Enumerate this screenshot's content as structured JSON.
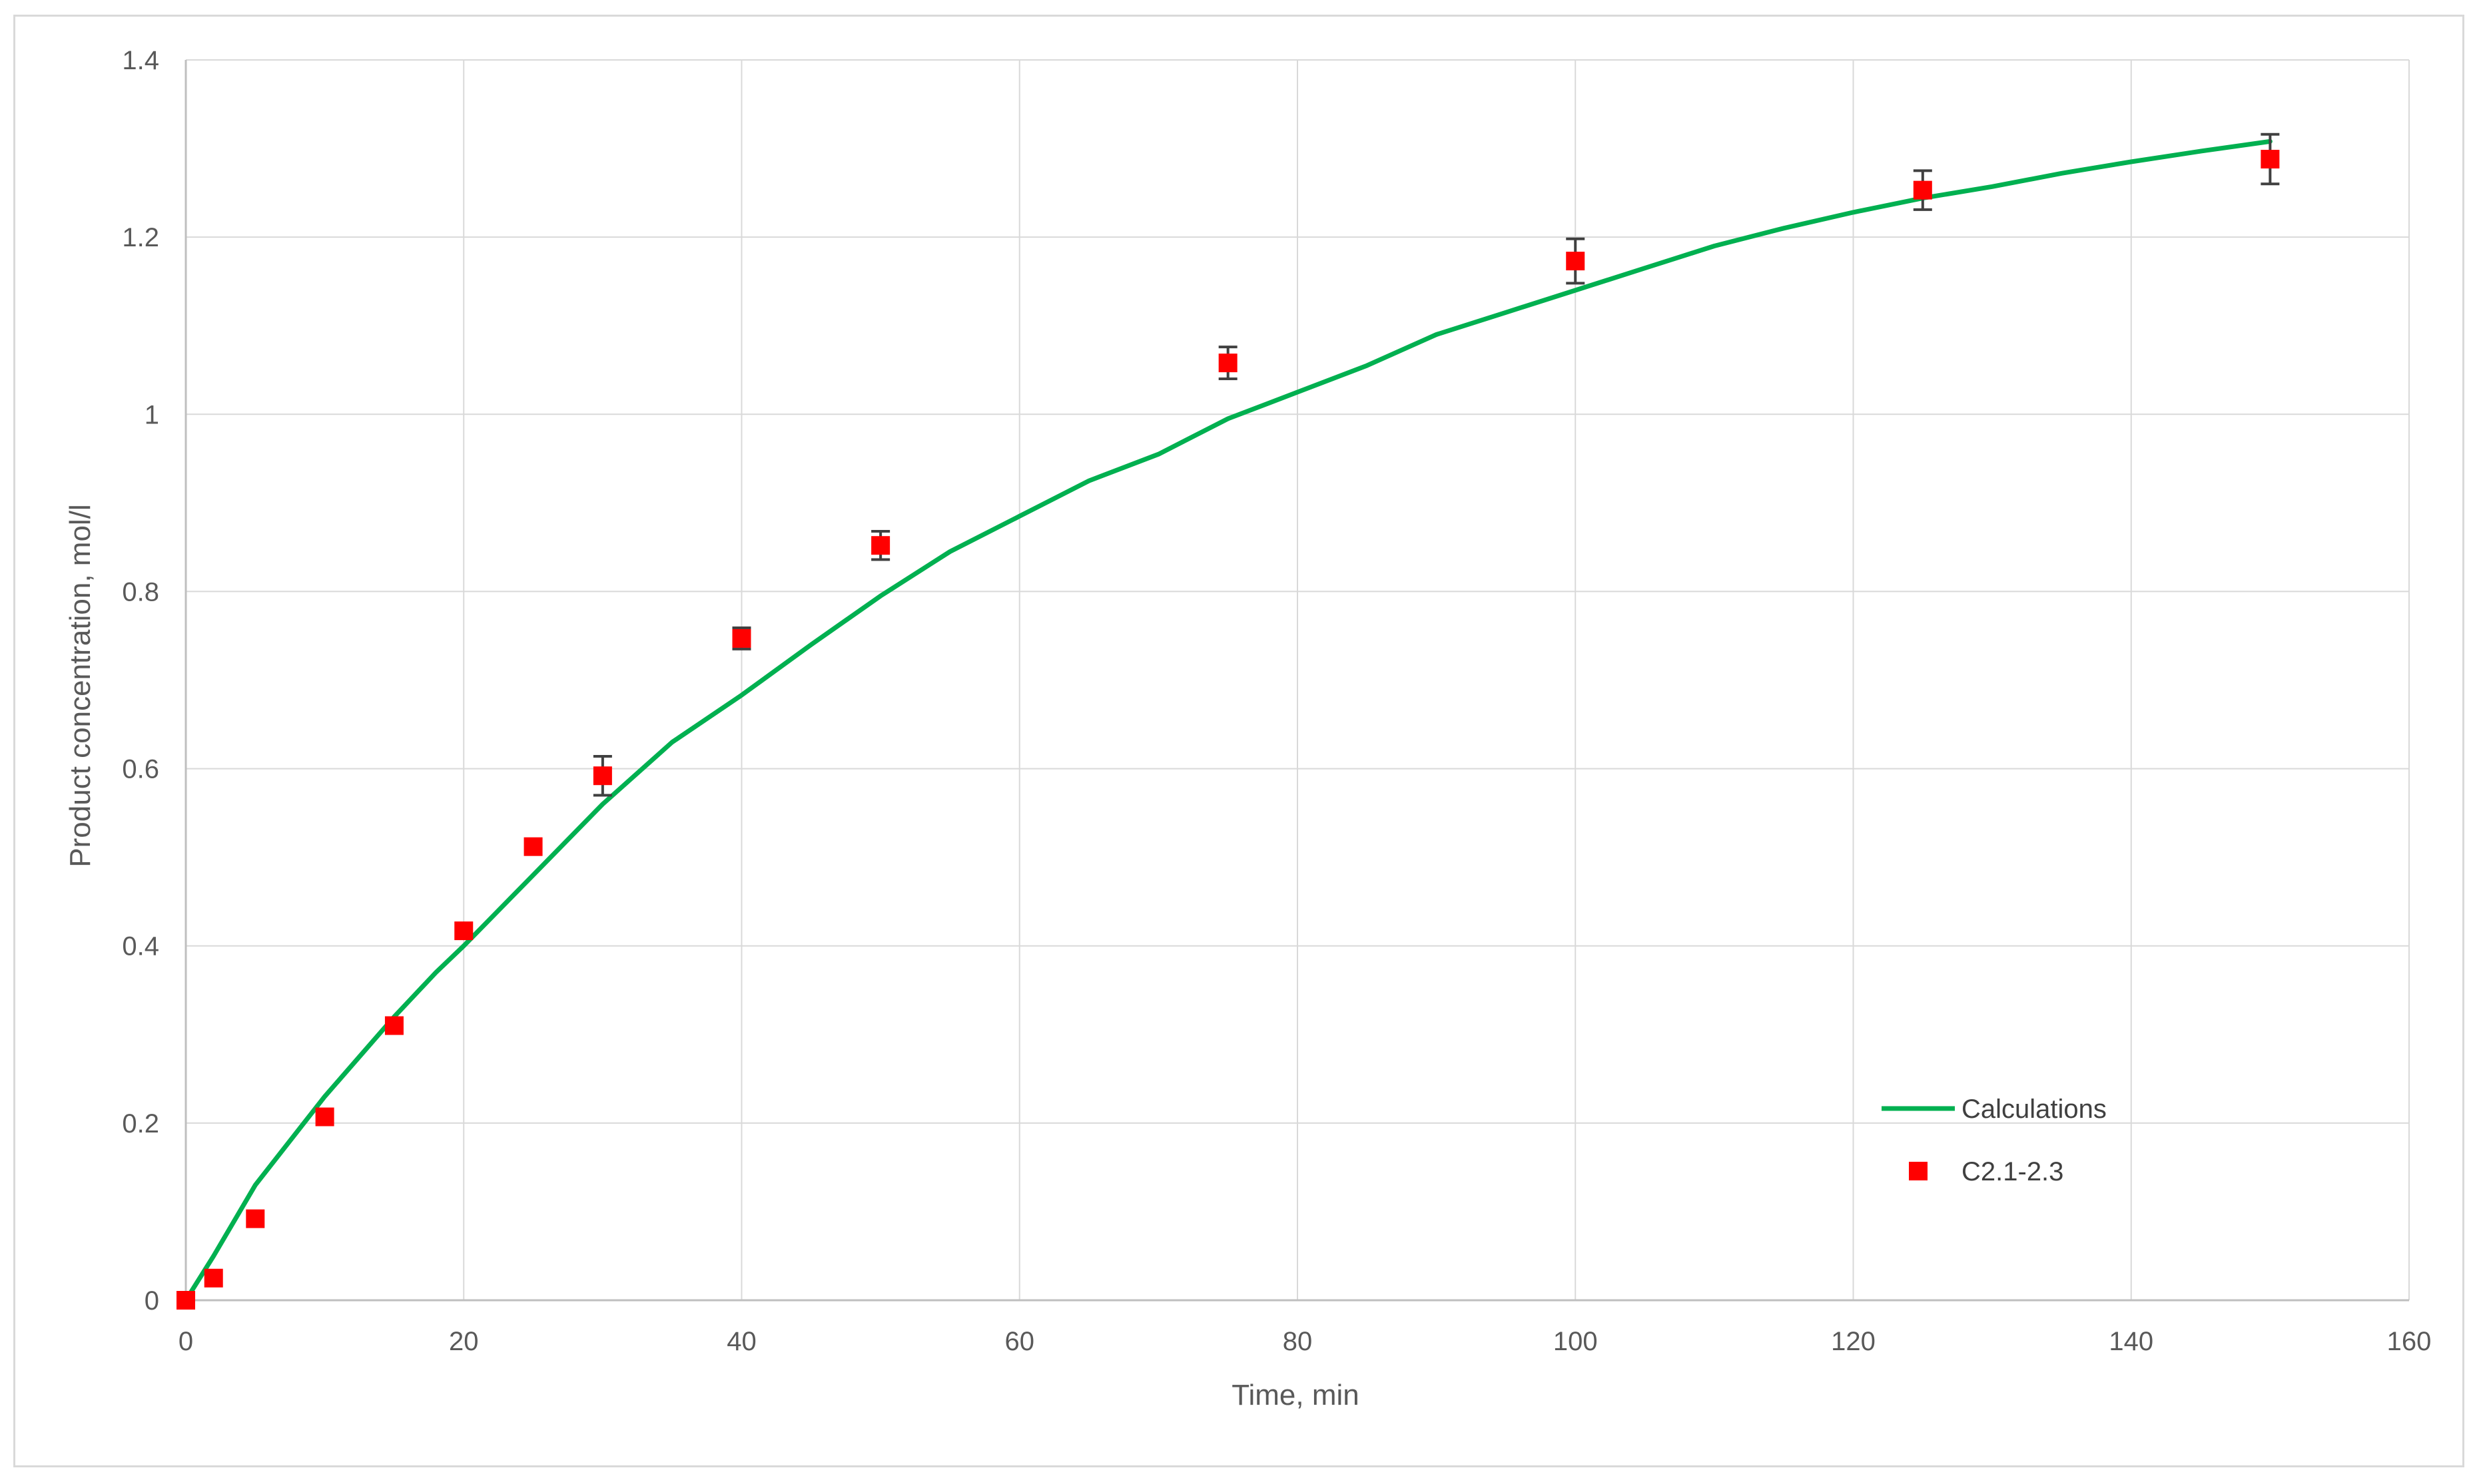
{
  "chart_data": {
    "type": "scatter",
    "title": "",
    "xlabel": "Time, min",
    "ylabel": "Product concentration, mol/l",
    "xlim": [
      0,
      160
    ],
    "ylim": [
      0,
      1.4
    ],
    "xticks": [
      0,
      20,
      40,
      60,
      80,
      100,
      120,
      140,
      160
    ],
    "yticks": [
      0,
      0.2,
      0.4,
      0.6,
      0.8,
      1,
      1.2,
      1.4
    ],
    "xtick_labels": [
      "0",
      "20",
      "40",
      "60",
      "80",
      "100",
      "120",
      "140",
      "160"
    ],
    "ytick_labels": [
      "0",
      "0.2",
      "0.4",
      "0.6",
      "0.8",
      "1",
      "1.2",
      "1.4"
    ],
    "grid": true,
    "legend_position": "bottom-right",
    "series": [
      {
        "name": "Calculations",
        "kind": "line",
        "color": "#00b050",
        "x": [
          0,
          2,
          5,
          10,
          15,
          18,
          20,
          25,
          30,
          35,
          40,
          45,
          50,
          55,
          60,
          65,
          70,
          75,
          80,
          85,
          90,
          95,
          100,
          105,
          110,
          115,
          120,
          125,
          130,
          135,
          140,
          145,
          150
        ],
        "y": [
          0,
          0.05,
          0.13,
          0.23,
          0.32,
          0.37,
          0.4,
          0.48,
          0.56,
          0.63,
          0.683,
          0.74,
          0.795,
          0.845,
          0.885,
          0.925,
          0.955,
          0.995,
          1.025,
          1.055,
          1.09,
          1.115,
          1.14,
          1.165,
          1.19,
          1.21,
          1.228,
          1.244,
          1.257,
          1.272,
          1.285,
          1.297,
          1.308
        ]
      },
      {
        "name": "C2.1-2.3",
        "kind": "scatter",
        "color": "#ff0000",
        "x": [
          0,
          2,
          5,
          10,
          15,
          20,
          25,
          30,
          40,
          50,
          75,
          100,
          125,
          150
        ],
        "y": [
          0,
          0.025,
          0.092,
          0.207,
          0.31,
          0.417,
          0.512,
          0.592,
          0.747,
          0.852,
          1.058,
          1.173,
          1.253,
          1.288
        ],
        "err": [
          0,
          0,
          0,
          0,
          0,
          0,
          0,
          0.022,
          0.012,
          0.016,
          0.018,
          0.025,
          0.022,
          0.028
        ]
      }
    ],
    "colors": {
      "grid": "#d9d9d9",
      "axis": "#bfbfbf",
      "errorbar": "#404040"
    }
  }
}
